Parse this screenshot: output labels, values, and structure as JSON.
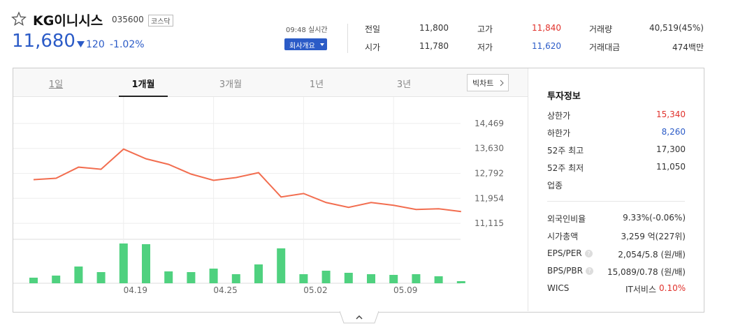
{
  "header": {
    "name": "KG이니시스",
    "code": "035600",
    "market": "코스닥",
    "price": "11,680",
    "change": "120",
    "change_rate": "-1.02%",
    "time": "09:48 실시간",
    "company_button": "회사개요"
  },
  "quotes": [
    [
      {
        "label": "전일",
        "value": "11,800"
      },
      {
        "label": "고가",
        "value": "11,840",
        "color": "#e0312b"
      },
      {
        "label": "거래량",
        "value": "40,519(45%)"
      }
    ],
    [
      {
        "label": "시가",
        "value": "11,780"
      },
      {
        "label": "저가",
        "value": "11,620",
        "color": "#2b5bc7"
      },
      {
        "label": "거래대금",
        "value": "474백만"
      }
    ]
  ],
  "tabs": [
    "1일",
    "1개월",
    "3개월",
    "1년",
    "3년"
  ],
  "big_chart": "빅차트",
  "chart_data": {
    "type": "line",
    "categories": [
      null,
      null,
      null,
      null,
      "04.19",
      null,
      null,
      null,
      "04.25",
      null,
      null,
      null,
      "05.02",
      null,
      null,
      null,
      "05.09",
      null,
      null,
      null
    ],
    "values": [
      12582,
      12628,
      13001,
      12931,
      13607,
      13281,
      13094,
      12768,
      12558,
      12652,
      12815,
      11999,
      12116,
      11813,
      11650,
      11813,
      11720,
      11580,
      11603,
      11510
    ],
    "color": "#f26d4f",
    "ylim": [
      10765,
      15100
    ],
    "yticks": [
      {
        "value": 11115,
        "label": "11,115"
      },
      {
        "value": 11954,
        "label": "11,954"
      },
      {
        "value": 12792,
        "label": "12,792"
      },
      {
        "value": 13630,
        "label": "13,630"
      },
      {
        "value": 14469,
        "label": "14,469"
      }
    ],
    "grid": true,
    "volume": {
      "values": [
        8,
        11,
        24,
        16,
        57,
        56,
        17,
        16,
        21,
        13,
        27,
        50,
        13,
        18,
        15,
        13,
        12,
        13,
        10,
        3
      ],
      "ylim": [
        0,
        63
      ],
      "color": "#4fd17f"
    }
  },
  "invest_info": {
    "title": "투자정보",
    "help_icon": "?",
    "rows1": [
      {
        "label": "상한가",
        "value": "15,340",
        "color": "#e0312b"
      },
      {
        "label": "하한가",
        "value": "8,260",
        "color": "#2b5bc7"
      },
      {
        "label": "52주 최고",
        "value": "17,300"
      },
      {
        "label": "52주 최저",
        "value": "11,050"
      },
      {
        "label": "업종",
        "value": ""
      }
    ],
    "rows2": [
      {
        "label": "외국인비율",
        "value": "9.33%(-0.06%)"
      },
      {
        "label": "시가총액",
        "value": "3,259 억(227위)"
      },
      {
        "label": "EPS/PER",
        "value": "2,054/5.8 (원/배)",
        "help": true
      },
      {
        "label": "BPS/PBR",
        "value": "15,089/0.78 (원/배)",
        "help": true
      },
      {
        "label": "WICS",
        "value": "IT서비스",
        "extra": "0.10%",
        "extra_color": "#e0312b"
      }
    ]
  }
}
